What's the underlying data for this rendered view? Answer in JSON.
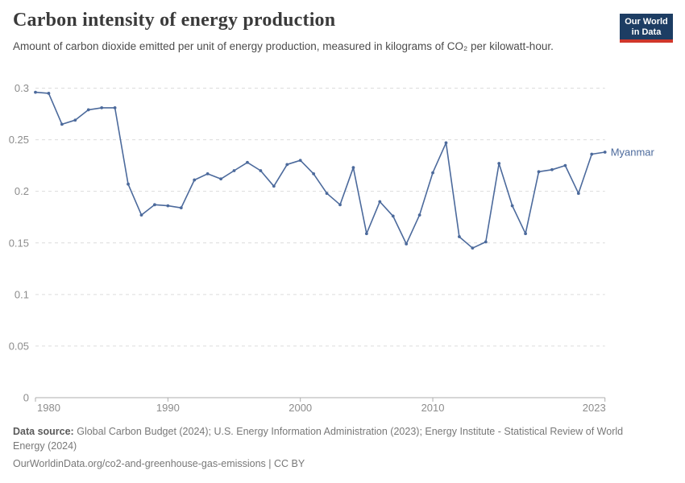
{
  "header": {
    "title": "Carbon intensity of energy production",
    "subtitle": "Amount of carbon dioxide emitted per unit of energy production, measured in kilograms of CO₂ per kilowatt-hour.",
    "logo": {
      "line1": "Our World",
      "line2": "in Data"
    }
  },
  "chart_data": {
    "type": "line",
    "title": "Carbon intensity of energy production",
    "xlabel": "",
    "ylabel": "",
    "x": [
      1980,
      1981,
      1982,
      1983,
      1984,
      1985,
      1986,
      1987,
      1988,
      1989,
      1990,
      1991,
      1992,
      1993,
      1994,
      1995,
      1996,
      1997,
      1998,
      1999,
      2000,
      2001,
      2002,
      2003,
      2004,
      2005,
      2006,
      2007,
      2008,
      2009,
      2010,
      2011,
      2012,
      2013,
      2014,
      2015,
      2016,
      2017,
      2018,
      2019,
      2020,
      2021,
      2022,
      2023
    ],
    "series": [
      {
        "name": "Myanmar",
        "color": "#4C6A9C",
        "values": [
          0.296,
          0.295,
          0.265,
          0.269,
          0.279,
          0.281,
          0.281,
          0.207,
          0.177,
          0.187,
          0.186,
          0.184,
          0.211,
          0.217,
          0.212,
          0.22,
          0.228,
          0.22,
          0.205,
          0.226,
          0.23,
          0.217,
          0.198,
          0.187,
          0.223,
          0.159,
          0.19,
          0.176,
          0.149,
          0.177,
          0.218,
          0.247,
          0.156,
          0.145,
          0.151,
          0.227,
          0.186,
          0.159,
          0.219,
          0.221,
          0.225,
          0.198,
          0.236,
          0.238
        ]
      }
    ],
    "xlim": [
      1980,
      2023
    ],
    "ylim": [
      0,
      0.3
    ],
    "ytick_values": [
      0,
      0.05,
      0.1,
      0.15,
      0.2,
      0.25,
      0.3
    ],
    "ytick_labels": [
      "0",
      "0.05",
      "0.1",
      "0.15",
      "0.2",
      "0.25",
      "0.3"
    ],
    "xtick_values": [
      1980,
      1990,
      2000,
      2010,
      2023
    ],
    "xtick_labels": [
      "1980",
      "1990",
      "2000",
      "2010",
      "2023"
    ],
    "grid": "horizontal-dashed",
    "legend_position": "end-of-line-label"
  },
  "footer": {
    "source_label": "Data source:",
    "source_text": "Global Carbon Budget (2024); U.S. Energy Information Administration (2023); Energy Institute - Statistical Review of World Energy (2024)",
    "license_line": "OurWorldinData.org/co2-and-greenhouse-gas-emissions | CC BY"
  },
  "colors": {
    "accent": "#4C6A9C",
    "logo_bg": "#1d3d63",
    "logo_stripe": "#d0372b",
    "grid": "#dcdcdc",
    "axis": "#aeaeae",
    "tick_text": "#8c8c8c"
  }
}
